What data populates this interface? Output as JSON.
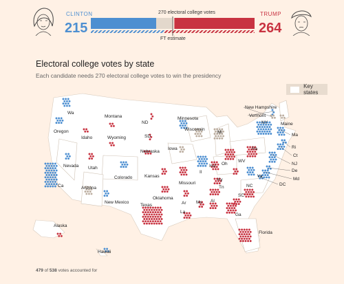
{
  "header": {
    "clinton": {
      "name": "CLINTON",
      "votes": "215"
    },
    "trump": {
      "name": "TRUMP",
      "votes": "264"
    },
    "threshold_label": "270 electoral college votes",
    "estimate_label": "FT estimate",
    "clinton_fraction": 0.4,
    "trump_fraction": 0.49
  },
  "title": "Electoral college votes by state",
  "subtitle": "Each candidate needs 270 electoral college votes to win the presidency",
  "key": {
    "label": "Key states"
  },
  "colors": {
    "clinton": "#4d8fd1",
    "trump": "#c83341",
    "tossup": "#bcaea0",
    "land": "#ffffff",
    "bg": "#fff1e5"
  },
  "states": [
    {
      "name": "Wa"
    },
    {
      "name": "Oregon"
    },
    {
      "name": "Ca"
    },
    {
      "name": "Nevada"
    },
    {
      "name": "Idaho"
    },
    {
      "name": "Utah"
    },
    {
      "name": "Arizona"
    },
    {
      "name": "Montana"
    },
    {
      "name": "Wyoming"
    },
    {
      "name": "Colorado"
    },
    {
      "name": "New Mexico"
    },
    {
      "name": "ND"
    },
    {
      "name": "SD"
    },
    {
      "name": "Nebraska"
    },
    {
      "name": "Kansas"
    },
    {
      "name": "Oklahoma"
    },
    {
      "name": "Texas"
    },
    {
      "name": "Minnesota"
    },
    {
      "name": "Iowa"
    },
    {
      "name": "Missouri"
    },
    {
      "name": "Ar"
    },
    {
      "name": "La"
    },
    {
      "name": "Wisconsin"
    },
    {
      "name": "Il"
    },
    {
      "name": "Ms"
    },
    {
      "name": "Mi"
    },
    {
      "name": "Ind"
    },
    {
      "name": "Ky"
    },
    {
      "name": "Tn"
    },
    {
      "name": "Al"
    },
    {
      "name": "Ga"
    },
    {
      "name": "Florida"
    },
    {
      "name": "Oh"
    },
    {
      "name": "WV"
    },
    {
      "name": "Va"
    },
    {
      "name": "NC"
    },
    {
      "name": "SC"
    },
    {
      "name": "Pa"
    },
    {
      "name": "NY"
    },
    {
      "name": "Vermont"
    },
    {
      "name": "New Hampshire"
    },
    {
      "name": "Maine"
    },
    {
      "name": "Ma"
    },
    {
      "name": "Ri"
    },
    {
      "name": "Ct"
    },
    {
      "name": "NJ"
    },
    {
      "name": "De"
    },
    {
      "name": "Md"
    },
    {
      "name": "DC"
    },
    {
      "name": "Alaska"
    },
    {
      "name": "Hawaii"
    }
  ],
  "footer": {
    "count": "479",
    "middle": " of ",
    "total": "538",
    "suffix": " votes accounted for"
  }
}
